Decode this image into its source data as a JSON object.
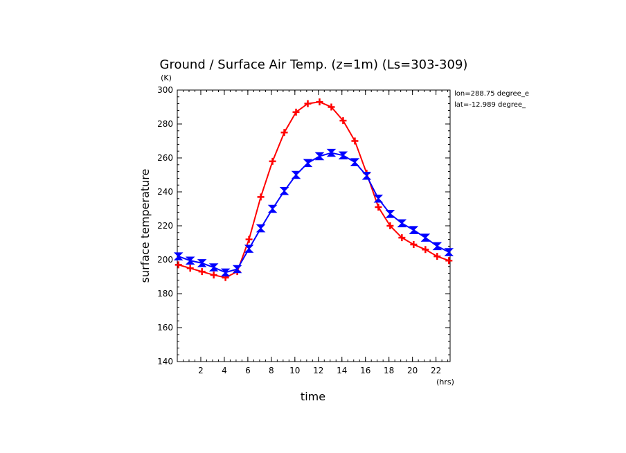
{
  "chart_data": {
    "type": "line",
    "title": "Ground / Surface Air Temp. (z=1m) (Ls=303-309)",
    "xlabel": "time",
    "x_unit": "(hrs)",
    "ylabel": "surface temperature",
    "y_unit": "(K)",
    "xlim": [
      0,
      23.2
    ],
    "ylim": [
      140,
      300
    ],
    "x_ticks": [
      2,
      4,
      6,
      8,
      10,
      12,
      14,
      16,
      18,
      20,
      22
    ],
    "y_ticks": [
      140,
      160,
      180,
      200,
      220,
      240,
      260,
      280,
      300
    ],
    "annotations": [
      "lon=288.75 degree_e",
      "lat=-12.989 degree_"
    ],
    "x": [
      0.1,
      1.1,
      2.1,
      3.1,
      4.1,
      5.1,
      6.1,
      7.1,
      8.1,
      9.1,
      10.1,
      11.1,
      12.1,
      13.1,
      14.1,
      15.1,
      16.1,
      17.1,
      18.1,
      19.1,
      20.1,
      21.1,
      22.1,
      23.1
    ],
    "series": [
      {
        "color": "#ff0000",
        "marker": "plus",
        "values": [
          197,
          195,
          193,
          191,
          189.5,
          193,
          212,
          237,
          258,
          275,
          287,
          292,
          293,
          290,
          282,
          270,
          251,
          231,
          220,
          213,
          209,
          206,
          202,
          199.5
        ]
      },
      {
        "color": "#0000ff",
        "marker": "hourglass",
        "values": [
          202,
          199.5,
          198,
          195.5,
          192.5,
          194.5,
          206.5,
          218.5,
          230,
          240.5,
          250,
          257,
          261,
          263,
          261.5,
          257.5,
          249.5,
          236,
          227,
          221.5,
          217.5,
          213,
          208,
          204.5
        ]
      }
    ]
  }
}
